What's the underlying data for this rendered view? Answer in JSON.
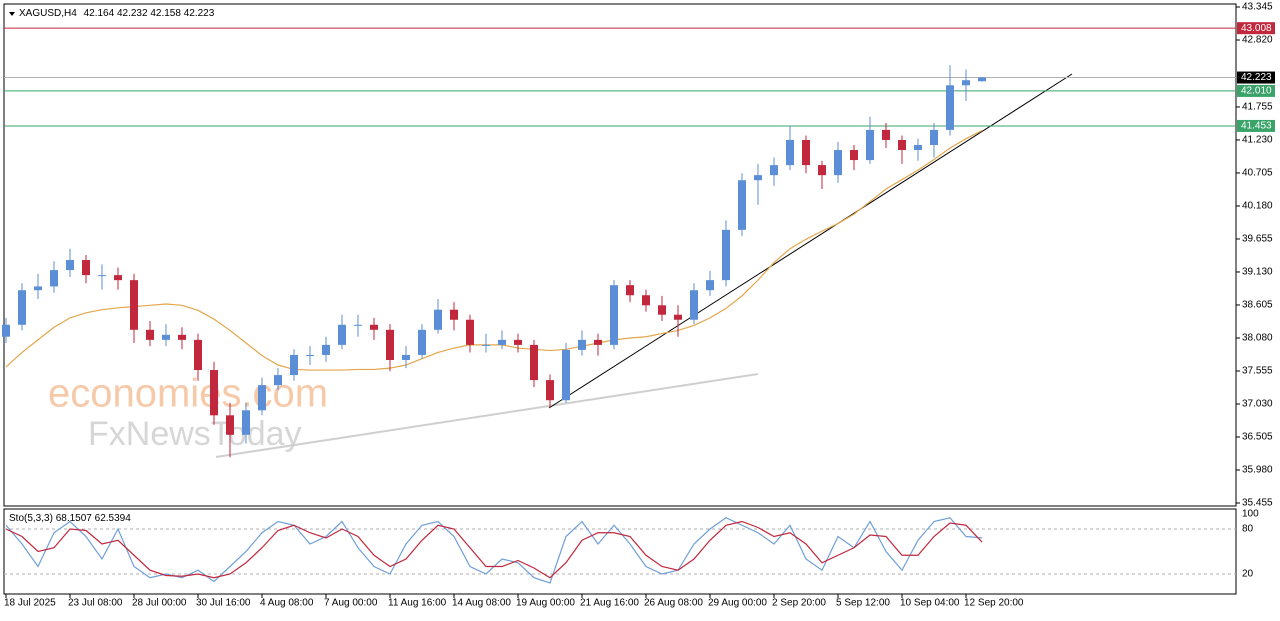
{
  "chart_data": [
    {
      "type": "candlestick",
      "symbol": "XAGUSD,H4",
      "categories": [
        "18 Jul 2025",
        null,
        null,
        null,
        "23 Jul 08:00",
        null,
        null,
        null,
        "28 Jul 00:00",
        null,
        null,
        null,
        "30 Jul 16:00",
        null,
        null,
        null,
        "4 Aug 08:00",
        null,
        null,
        null,
        "7 Aug 00:00",
        null,
        null,
        null,
        "11 Aug 16:00",
        null,
        null,
        null,
        "14 Aug 08:00",
        null,
        null,
        null,
        "19 Aug 00:00",
        null,
        null,
        null,
        "21 Aug 16:00",
        null,
        null,
        null,
        "26 Aug 08:00",
        null,
        null,
        null,
        "29 Aug 00:00",
        null,
        null,
        null,
        "2 Sep 20:00",
        null,
        null,
        null,
        "5 Sep 12:00",
        null,
        null,
        null,
        "10 Sep 04:00",
        null,
        null,
        null,
        "12 Sep 20:00",
        null
      ],
      "open": [
        38.1,
        38.29,
        38.84,
        38.9,
        39.16,
        39.32,
        39.08,
        39.08,
        39.0,
        38.21,
        38.05,
        38.13,
        38.05,
        37.57,
        36.85,
        36.54,
        36.93,
        37.33,
        37.49,
        37.81,
        37.81,
        37.97,
        38.29,
        38.29,
        38.21,
        37.73,
        37.81,
        38.21,
        38.53,
        38.37,
        37.97,
        37.97,
        38.05,
        37.97,
        37.41,
        37.09,
        37.89,
        38.05,
        37.97,
        38.92,
        38.76,
        38.6,
        38.45,
        38.37,
        38.84,
        39.0,
        39.8,
        40.59,
        40.67,
        40.83,
        41.23,
        40.83,
        40.67,
        41.07,
        40.91,
        41.39,
        41.23,
        41.07,
        41.15,
        41.39,
        42.1,
        42.164
      ],
      "high": [
        38.4,
        38.95,
        39.1,
        39.3,
        39.5,
        39.4,
        39.25,
        39.2,
        39.1,
        38.35,
        38.3,
        38.25,
        38.15,
        37.7,
        37.05,
        37.05,
        37.45,
        37.6,
        37.9,
        37.95,
        38.1,
        38.45,
        38.45,
        38.4,
        38.3,
        37.95,
        38.3,
        38.7,
        38.65,
        38.45,
        38.15,
        38.2,
        38.15,
        38.05,
        37.5,
        38.0,
        38.2,
        38.15,
        39.0,
        39.0,
        38.85,
        38.75,
        38.6,
        38.95,
        39.15,
        39.95,
        40.7,
        40.85,
        40.95,
        41.45,
        41.3,
        40.9,
        41.2,
        41.15,
        41.6,
        41.5,
        41.3,
        41.25,
        41.5,
        42.42,
        42.35,
        42.232
      ],
      "low": [
        38.0,
        38.2,
        38.7,
        38.8,
        39.05,
        38.95,
        38.85,
        38.85,
        38.0,
        37.95,
        37.95,
        37.9,
        37.4,
        36.7,
        36.18,
        36.4,
        36.85,
        37.25,
        37.4,
        37.65,
        37.7,
        37.9,
        38.1,
        38.05,
        37.55,
        37.6,
        37.75,
        38.15,
        38.2,
        37.85,
        37.85,
        37.9,
        37.85,
        37.3,
        36.98,
        37.05,
        37.8,
        37.8,
        37.9,
        38.65,
        38.5,
        38.35,
        38.1,
        38.3,
        38.75,
        38.9,
        39.7,
        40.2,
        40.5,
        40.75,
        40.7,
        40.45,
        40.55,
        40.75,
        40.85,
        41.1,
        40.85,
        40.9,
        40.95,
        41.3,
        41.85,
        42.158
      ],
      "close": [
        38.29,
        38.84,
        38.9,
        39.16,
        39.32,
        39.08,
        39.08,
        39.0,
        38.21,
        38.05,
        38.13,
        38.05,
        37.57,
        36.85,
        36.54,
        36.93,
        37.33,
        37.49,
        37.81,
        37.81,
        37.97,
        38.29,
        38.29,
        38.21,
        37.73,
        37.81,
        38.21,
        38.53,
        38.37,
        37.97,
        37.97,
        38.05,
        37.97,
        37.41,
        37.09,
        37.89,
        38.05,
        37.97,
        38.92,
        38.76,
        38.6,
        38.45,
        38.37,
        38.84,
        39.0,
        39.8,
        40.59,
        40.67,
        40.83,
        41.23,
        40.83,
        40.67,
        41.07,
        40.91,
        41.39,
        41.23,
        41.07,
        41.15,
        41.39,
        42.1,
        42.18,
        42.223
      ],
      "up_color": "#5b8ed6",
      "down_color": "#c1273d",
      "ma": {
        "color": "#e3a64a",
        "values": [
          37.62,
          37.85,
          38.05,
          38.25,
          38.4,
          38.48,
          38.53,
          38.56,
          38.58,
          38.6,
          38.62,
          38.6,
          38.52,
          38.38,
          38.2,
          38.0,
          37.8,
          37.65,
          37.58,
          37.57,
          37.57,
          37.57,
          37.58,
          37.58,
          37.6,
          37.65,
          37.75,
          37.85,
          37.92,
          37.97,
          37.97,
          37.97,
          37.92,
          37.9,
          37.88,
          37.9,
          37.95,
          38.0,
          38.05,
          38.08,
          38.1,
          38.15,
          38.2,
          38.28,
          38.4,
          38.55,
          38.75,
          39.0,
          39.28,
          39.5,
          39.65,
          39.78,
          39.9,
          40.05,
          40.25,
          40.45,
          40.6,
          40.75,
          40.92,
          41.1,
          41.25,
          41.38
        ]
      },
      "levels": [
        {
          "value": 43.008,
          "color": "#c1273d"
        },
        {
          "value": 42.01,
          "label": "42.010",
          "color": "#3aa36a"
        },
        {
          "value": 41.453,
          "color": "#3aa36a"
        }
      ],
      "ylim": [
        35.455,
        43.345
      ],
      "yticks": [
        43.345,
        {
          "value": 42.82,
          "label": "42.820"
        },
        41.755,
        {
          "value": 41.23,
          "label": "41.230"
        },
        40.705,
        {
          "value": 40.18,
          "label": "40.180"
        },
        39.655,
        {
          "value": 39.13,
          "label": "39.130"
        },
        38.605,
        {
          "value": 38.08,
          "label": "38.080"
        },
        37.555,
        {
          "value": 37.03,
          "label": "37.030"
        },
        36.505,
        {
          "value": 35.98,
          "label": "35.980"
        },
        35.455
      ],
      "watermark": [
        "economies.com",
        "FxNewsToday"
      ]
    },
    {
      "type": "line",
      "title": "Sto(5,3,3)",
      "series": [
        {
          "color": "#6f9fd8",
          "values": [
            85,
            60,
            30,
            75,
            90,
            70,
            40,
            80,
            30,
            15,
            20,
            15,
            25,
            10,
            30,
            50,
            75,
            90,
            85,
            60,
            70,
            90,
            55,
            30,
            20,
            60,
            85,
            90,
            70,
            30,
            20,
            40,
            35,
            15,
            8,
            70,
            90,
            60,
            85,
            60,
            30,
            20,
            25,
            60,
            80,
            95,
            85,
            75,
            60,
            85,
            40,
            25,
            70,
            55,
            90,
            50,
            25,
            65,
            90,
            95,
            70,
            68.1507
          ]
        },
        {
          "color": "#c1273d",
          "values": [
            80,
            70,
            50,
            55,
            80,
            78,
            60,
            65,
            45,
            25,
            18,
            17,
            20,
            15,
            20,
            35,
            55,
            78,
            85,
            75,
            68,
            80,
            70,
            45,
            30,
            40,
            65,
            85,
            80,
            55,
            30,
            30,
            38,
            28,
            15,
            35,
            65,
            75,
            75,
            70,
            45,
            30,
            25,
            40,
            65,
            85,
            90,
            82,
            70,
            75,
            60,
            35,
            45,
            55,
            72,
            70,
            45,
            45,
            70,
            88,
            85,
            62.5394
          ]
        }
      ],
      "ylim": [
        0,
        100
      ],
      "yticks": [
        100,
        80,
        20
      ]
    }
  ]
}
